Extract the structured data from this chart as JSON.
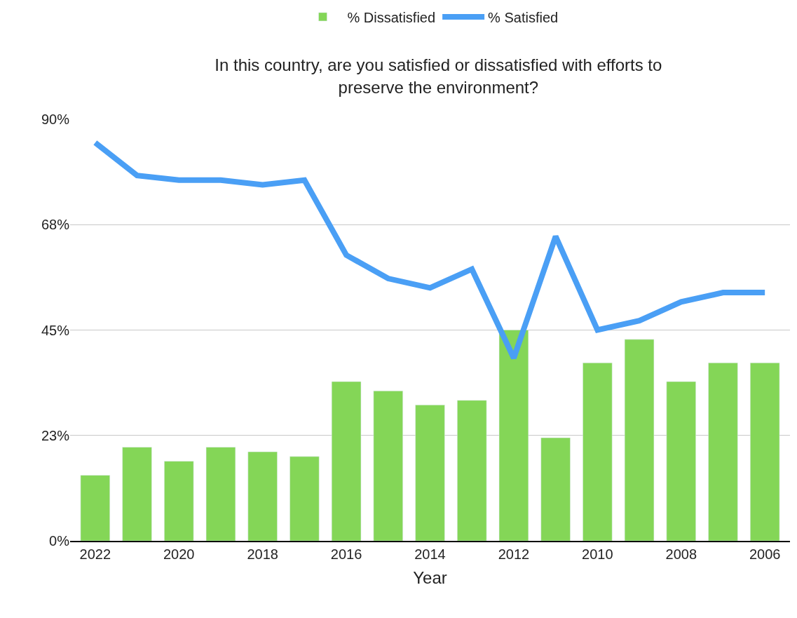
{
  "chart_data": {
    "type": "bar",
    "title": "In this country, are you satisfied or dissatisfied with efforts to\npreserve the environment?",
    "xlabel": "Year",
    "categories": [
      "2022",
      null,
      "2020",
      null,
      "2018",
      null,
      "2016",
      null,
      "2014",
      null,
      "2012",
      null,
      "2010",
      null,
      "2008",
      null,
      "2006"
    ],
    "series": [
      {
        "name": "% Satisfied",
        "type": "line",
        "color": "#4a9ff5",
        "values": [
          85,
          78,
          77,
          77,
          76,
          77,
          61,
          56,
          54,
          58,
          39,
          65,
          45,
          47,
          51,
          53,
          53
        ]
      },
      {
        "name": "% Dissatisfied",
        "color": "#84d657",
        "values": [
          14,
          20,
          17,
          20,
          19,
          18,
          34,
          32,
          29,
          30,
          45,
          22,
          38,
          43,
          34,
          38,
          38
        ]
      }
    ],
    "ylim": [
      0,
      90
    ],
    "yticks": [
      {
        "value": 0,
        "label": "0%"
      },
      {
        "value": 22.5,
        "label": "23%"
      },
      {
        "value": 45,
        "label": "45%"
      },
      {
        "value": 67.5,
        "label": "68%"
      },
      {
        "value": 90,
        "label": "90%"
      }
    ],
    "grid": "y",
    "legend": "top",
    "marker": "none",
    "line_style": "solid"
  }
}
